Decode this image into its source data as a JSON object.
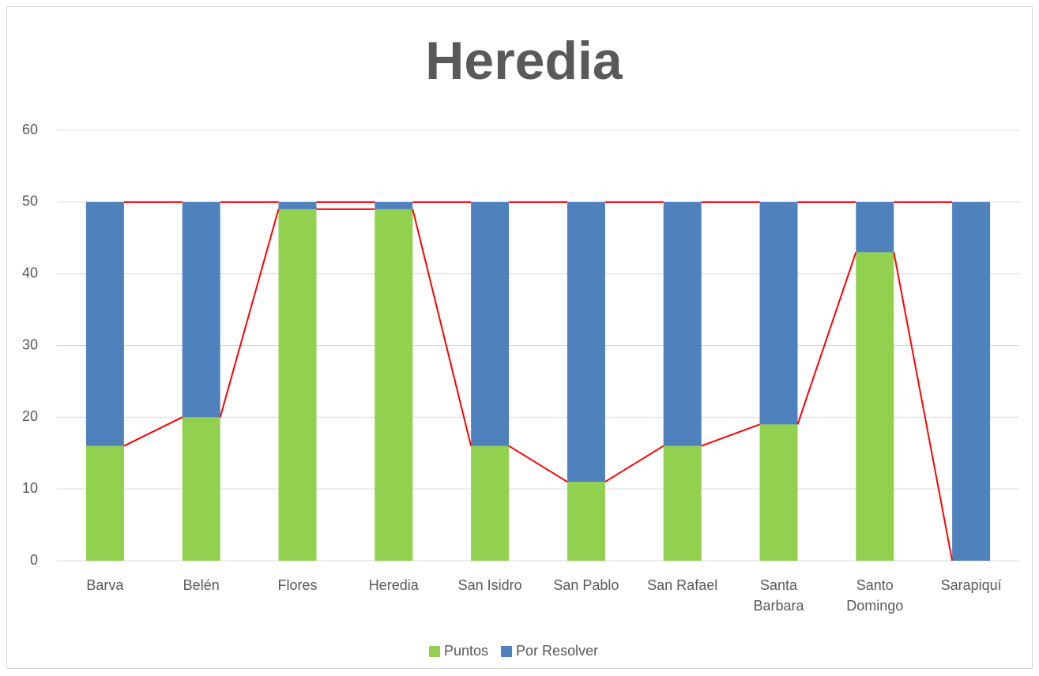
{
  "chart_data": {
    "type": "stacked_bar",
    "title": "Heredia",
    "categories": [
      "Barva",
      "Belén",
      "Flores",
      "Heredia",
      "San Isidro",
      "San Pablo",
      "San Rafael",
      "Santa Barbara",
      "Santo Domingo",
      "Sarapiquí"
    ],
    "series": [
      {
        "name": "Puntos",
        "color": "#92d050",
        "values": [
          16,
          20,
          49,
          49,
          16,
          11,
          16,
          19,
          43,
          0
        ]
      },
      {
        "name": "Por Resolver",
        "color": "#4f81bd",
        "values": [
          34,
          30,
          1,
          1,
          34,
          39,
          34,
          31,
          7,
          50
        ]
      }
    ],
    "series_lines_color": "#ff0000",
    "ylim": [
      0,
      60
    ],
    "yticks": [
      0,
      10,
      20,
      30,
      40,
      50,
      60
    ],
    "grid": true,
    "legend": "bottom"
  }
}
